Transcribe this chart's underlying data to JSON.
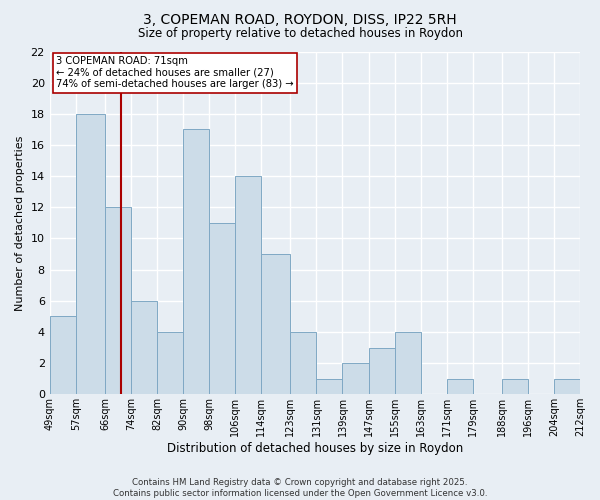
{
  "title": "3, COPEMAN ROAD, ROYDON, DISS, IP22 5RH",
  "subtitle": "Size of property relative to detached houses in Roydon",
  "xlabel": "Distribution of detached houses by size in Roydon",
  "ylabel": "Number of detached properties",
  "bin_edges": [
    49,
    57,
    66,
    74,
    82,
    90,
    98,
    106,
    114,
    123,
    131,
    139,
    147,
    155,
    163,
    171,
    179,
    188,
    196,
    204,
    212
  ],
  "bin_labels": [
    "49sqm",
    "57sqm",
    "66sqm",
    "74sqm",
    "82sqm",
    "90sqm",
    "98sqm",
    "106sqm",
    "114sqm",
    "123sqm",
    "131sqm",
    "139sqm",
    "147sqm",
    "155sqm",
    "163sqm",
    "171sqm",
    "179sqm",
    "188sqm",
    "196sqm",
    "204sqm",
    "212sqm"
  ],
  "counts": [
    5,
    18,
    12,
    6,
    4,
    17,
    11,
    14,
    9,
    4,
    1,
    2,
    3,
    4,
    0,
    1,
    0,
    1,
    0,
    1
  ],
  "bar_color": "#ccdce8",
  "bar_edge_color": "#7fa8c4",
  "vline_color": "#aa0000",
  "vline_x": 71,
  "annotation_line1": "3 COPEMAN ROAD: 71sqm",
  "annotation_line2": "← 24% of detached houses are smaller (27)",
  "annotation_line3": "74% of semi-detached houses are larger (83) →",
  "annotation_box_color": "white",
  "annotation_box_edge": "#aa0000",
  "ylim": [
    0,
    22
  ],
  "yticks": [
    0,
    2,
    4,
    6,
    8,
    10,
    12,
    14,
    16,
    18,
    20,
    22
  ],
  "background_color": "#e8eef4",
  "grid_color": "white",
  "footer_line1": "Contains HM Land Registry data © Crown copyright and database right 2025.",
  "footer_line2": "Contains public sector information licensed under the Open Government Licence v3.0."
}
